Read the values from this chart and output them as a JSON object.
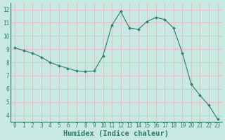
{
  "x": [
    0,
    1,
    2,
    3,
    4,
    5,
    6,
    7,
    8,
    9,
    10,
    11,
    12,
    13,
    14,
    15,
    16,
    17,
    18,
    19,
    20,
    21,
    22,
    23
  ],
  "y": [
    9.1,
    8.9,
    8.7,
    8.4,
    8.0,
    7.75,
    7.55,
    7.35,
    7.3,
    7.35,
    8.5,
    10.8,
    11.85,
    10.6,
    10.5,
    11.1,
    11.4,
    11.25,
    10.6,
    8.7,
    6.35,
    5.5,
    4.75,
    3.7
  ],
  "line_color": "#2d7a6e",
  "marker_color": "#2d7a6e",
  "bg_color": "#c8e8e2",
  "grid_color_major": "#e8b8b8",
  "grid_color_minor": "#e8b8b8",
  "xlabel": "Humidex (Indice chaleur)",
  "xlim": [
    -0.5,
    23.5
  ],
  "ylim": [
    3.5,
    12.5
  ],
  "yticks": [
    4,
    5,
    6,
    7,
    8,
    9,
    10,
    11,
    12
  ],
  "xticks": [
    0,
    1,
    2,
    3,
    4,
    5,
    6,
    7,
    8,
    9,
    10,
    11,
    12,
    13,
    14,
    15,
    16,
    17,
    18,
    19,
    20,
    21,
    22,
    23
  ],
  "tick_label_fontsize": 5.5,
  "xlabel_fontsize": 7.5,
  "text_color": "#2d7a6e"
}
